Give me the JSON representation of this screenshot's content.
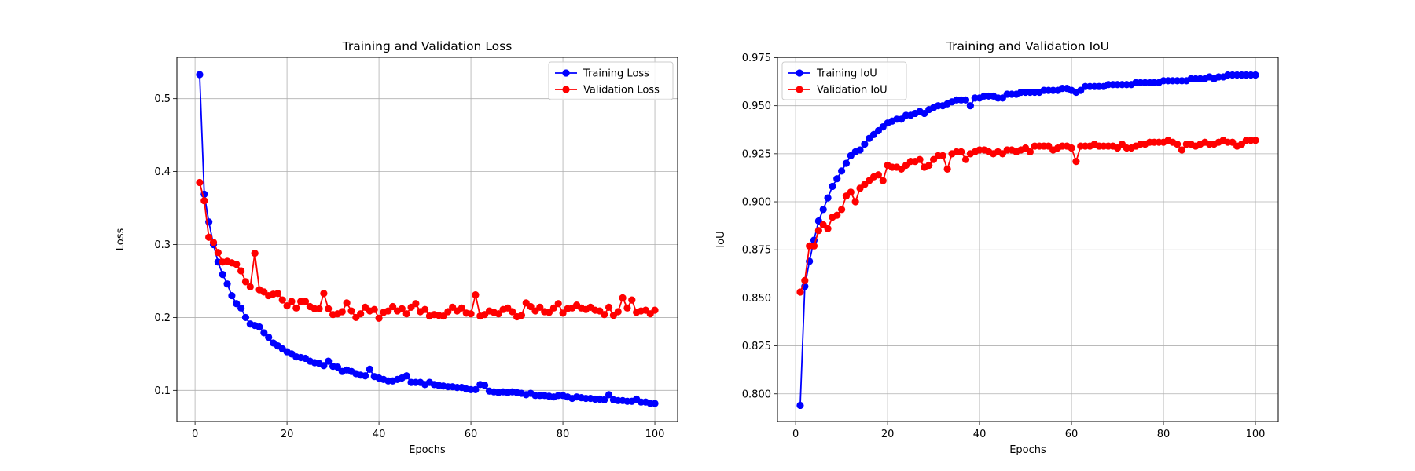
{
  "chart_data": [
    {
      "type": "line",
      "title": "Training and Validation Loss",
      "xlabel": "Epochs",
      "ylabel": "Loss",
      "xlim": [
        -3.95,
        104.95
      ],
      "ylim": [
        0.0573,
        0.5567
      ],
      "xticks": [
        0,
        20,
        40,
        60,
        80,
        100
      ],
      "yticks": [
        0.1,
        0.2,
        0.3,
        0.4,
        0.5
      ],
      "ytick_labels": [
        "0.1",
        "0.2",
        "0.3",
        "0.4",
        "0.5"
      ],
      "grid": true,
      "legend_position": "top-right",
      "x": [
        1,
        2,
        3,
        4,
        5,
        6,
        7,
        8,
        9,
        10,
        11,
        12,
        13,
        14,
        15,
        16,
        17,
        18,
        19,
        20,
        21,
        22,
        23,
        24,
        25,
        26,
        27,
        28,
        29,
        30,
        31,
        32,
        33,
        34,
        35,
        36,
        37,
        38,
        39,
        40,
        41,
        42,
        43,
        44,
        45,
        46,
        47,
        48,
        49,
        50,
        51,
        52,
        53,
        54,
        55,
        56,
        57,
        58,
        59,
        60,
        61,
        62,
        63,
        64,
        65,
        66,
        67,
        68,
        69,
        70,
        71,
        72,
        73,
        74,
        75,
        76,
        77,
        78,
        79,
        80,
        81,
        82,
        83,
        84,
        85,
        86,
        87,
        88,
        89,
        90,
        91,
        92,
        93,
        94,
        95,
        96,
        97,
        98,
        99,
        100
      ],
      "series": [
        {
          "name": "Training Loss",
          "color": "#0000ff",
          "values": [
            0.533,
            0.369,
            0.331,
            0.3,
            0.276,
            0.259,
            0.246,
            0.23,
            0.219,
            0.213,
            0.2,
            0.191,
            0.189,
            0.187,
            0.179,
            0.173,
            0.165,
            0.161,
            0.157,
            0.153,
            0.15,
            0.146,
            0.145,
            0.144,
            0.14,
            0.138,
            0.137,
            0.134,
            0.14,
            0.133,
            0.132,
            0.126,
            0.128,
            0.126,
            0.123,
            0.121,
            0.12,
            0.129,
            0.119,
            0.117,
            0.115,
            0.113,
            0.113,
            0.115,
            0.117,
            0.12,
            0.111,
            0.111,
            0.111,
            0.108,
            0.111,
            0.108,
            0.107,
            0.106,
            0.105,
            0.105,
            0.104,
            0.104,
            0.102,
            0.101,
            0.101,
            0.108,
            0.107,
            0.099,
            0.098,
            0.097,
            0.098,
            0.097,
            0.098,
            0.097,
            0.096,
            0.094,
            0.096,
            0.093,
            0.093,
            0.093,
            0.092,
            0.091,
            0.093,
            0.093,
            0.091,
            0.089,
            0.091,
            0.09,
            0.089,
            0.089,
            0.088,
            0.088,
            0.087,
            0.094,
            0.087,
            0.086,
            0.086,
            0.085,
            0.085,
            0.088,
            0.084,
            0.084,
            0.082,
            0.082
          ]
        },
        {
          "name": "Validation Loss",
          "color": "#ff0000",
          "values": [
            0.385,
            0.36,
            0.31,
            0.303,
            0.289,
            0.276,
            0.277,
            0.275,
            0.273,
            0.264,
            0.249,
            0.242,
            0.288,
            0.238,
            0.235,
            0.23,
            0.232,
            0.233,
            0.224,
            0.216,
            0.222,
            0.213,
            0.222,
            0.222,
            0.215,
            0.212,
            0.212,
            0.233,
            0.212,
            0.204,
            0.205,
            0.208,
            0.22,
            0.209,
            0.2,
            0.205,
            0.214,
            0.209,
            0.211,
            0.199,
            0.207,
            0.209,
            0.215,
            0.209,
            0.212,
            0.205,
            0.214,
            0.219,
            0.208,
            0.211,
            0.202,
            0.204,
            0.203,
            0.202,
            0.208,
            0.214,
            0.209,
            0.213,
            0.206,
            0.205,
            0.231,
            0.202,
            0.204,
            0.209,
            0.207,
            0.205,
            0.211,
            0.213,
            0.208,
            0.201,
            0.203,
            0.22,
            0.215,
            0.209,
            0.214,
            0.208,
            0.207,
            0.213,
            0.219,
            0.206,
            0.212,
            0.213,
            0.217,
            0.213,
            0.211,
            0.214,
            0.21,
            0.209,
            0.204,
            0.214,
            0.203,
            0.208,
            0.227,
            0.213,
            0.224,
            0.207,
            0.209,
            0.21,
            0.205,
            0.21
          ]
        }
      ]
    },
    {
      "type": "line",
      "title": "Training and Validation IoU",
      "xlabel": "Epochs",
      "ylabel": "IoU",
      "xlim": [
        -3.95,
        104.95
      ],
      "ylim": [
        0.7856,
        0.9752
      ],
      "xticks": [
        0,
        20,
        40,
        60,
        80,
        100
      ],
      "yticks": [
        0.8,
        0.825,
        0.85,
        0.875,
        0.9,
        0.925,
        0.95,
        0.975
      ],
      "ytick_labels": [
        "0.800",
        "0.825",
        "0.850",
        "0.875",
        "0.900",
        "0.925",
        "0.950",
        "0.975"
      ],
      "grid": true,
      "legend_position": "top-left",
      "x": [
        1,
        2,
        3,
        4,
        5,
        6,
        7,
        8,
        9,
        10,
        11,
        12,
        13,
        14,
        15,
        16,
        17,
        18,
        19,
        20,
        21,
        22,
        23,
        24,
        25,
        26,
        27,
        28,
        29,
        30,
        31,
        32,
        33,
        34,
        35,
        36,
        37,
        38,
        39,
        40,
        41,
        42,
        43,
        44,
        45,
        46,
        47,
        48,
        49,
        50,
        51,
        52,
        53,
        54,
        55,
        56,
        57,
        58,
        59,
        60,
        61,
        62,
        63,
        64,
        65,
        66,
        67,
        68,
        69,
        70,
        71,
        72,
        73,
        74,
        75,
        76,
        77,
        78,
        79,
        80,
        81,
        82,
        83,
        84,
        85,
        86,
        87,
        88,
        89,
        90,
        91,
        92,
        93,
        94,
        95,
        96,
        97,
        98,
        99,
        100
      ],
      "series": [
        {
          "name": "Training IoU",
          "color": "#0000ff",
          "values": [
            0.794,
            0.856,
            0.869,
            0.88,
            0.89,
            0.896,
            0.902,
            0.908,
            0.912,
            0.916,
            0.92,
            0.924,
            0.926,
            0.927,
            0.93,
            0.933,
            0.935,
            0.937,
            0.939,
            0.941,
            0.942,
            0.943,
            0.943,
            0.945,
            0.945,
            0.946,
            0.947,
            0.946,
            0.948,
            0.949,
            0.95,
            0.95,
            0.951,
            0.952,
            0.953,
            0.953,
            0.953,
            0.95,
            0.954,
            0.954,
            0.955,
            0.955,
            0.955,
            0.954,
            0.954,
            0.956,
            0.956,
            0.956,
            0.957,
            0.957,
            0.957,
            0.957,
            0.957,
            0.958,
            0.958,
            0.958,
            0.958,
            0.959,
            0.959,
            0.958,
            0.957,
            0.958,
            0.96,
            0.96,
            0.96,
            0.96,
            0.96,
            0.961,
            0.961,
            0.961,
            0.961,
            0.961,
            0.961,
            0.962,
            0.962,
            0.962,
            0.962,
            0.962,
            0.962,
            0.963,
            0.963,
            0.963,
            0.963,
            0.963,
            0.963,
            0.964,
            0.964,
            0.964,
            0.964,
            0.965,
            0.964,
            0.965,
            0.965,
            0.966,
            0.966,
            0.966,
            0.966,
            0.966,
            0.966,
            0.966
          ]
        },
        {
          "name": "Validation IoU",
          "color": "#ff0000",
          "values": [
            0.853,
            0.859,
            0.877,
            0.877,
            0.885,
            0.888,
            0.886,
            0.892,
            0.893,
            0.896,
            0.903,
            0.905,
            0.9,
            0.907,
            0.909,
            0.911,
            0.913,
            0.914,
            0.911,
            0.919,
            0.918,
            0.918,
            0.917,
            0.919,
            0.921,
            0.921,
            0.922,
            0.918,
            0.919,
            0.922,
            0.924,
            0.924,
            0.917,
            0.925,
            0.926,
            0.926,
            0.922,
            0.925,
            0.926,
            0.927,
            0.927,
            0.926,
            0.925,
            0.926,
            0.925,
            0.927,
            0.927,
            0.926,
            0.927,
            0.928,
            0.926,
            0.929,
            0.929,
            0.929,
            0.929,
            0.927,
            0.928,
            0.929,
            0.929,
            0.928,
            0.921,
            0.929,
            0.929,
            0.929,
            0.93,
            0.929,
            0.929,
            0.929,
            0.929,
            0.928,
            0.93,
            0.928,
            0.928,
            0.929,
            0.93,
            0.93,
            0.931,
            0.931,
            0.931,
            0.931,
            0.932,
            0.931,
            0.93,
            0.927,
            0.93,
            0.93,
            0.929,
            0.93,
            0.931,
            0.93,
            0.93,
            0.931,
            0.932,
            0.931,
            0.931,
            0.929,
            0.93,
            0.932,
            0.932,
            0.932
          ]
        }
      ]
    }
  ]
}
